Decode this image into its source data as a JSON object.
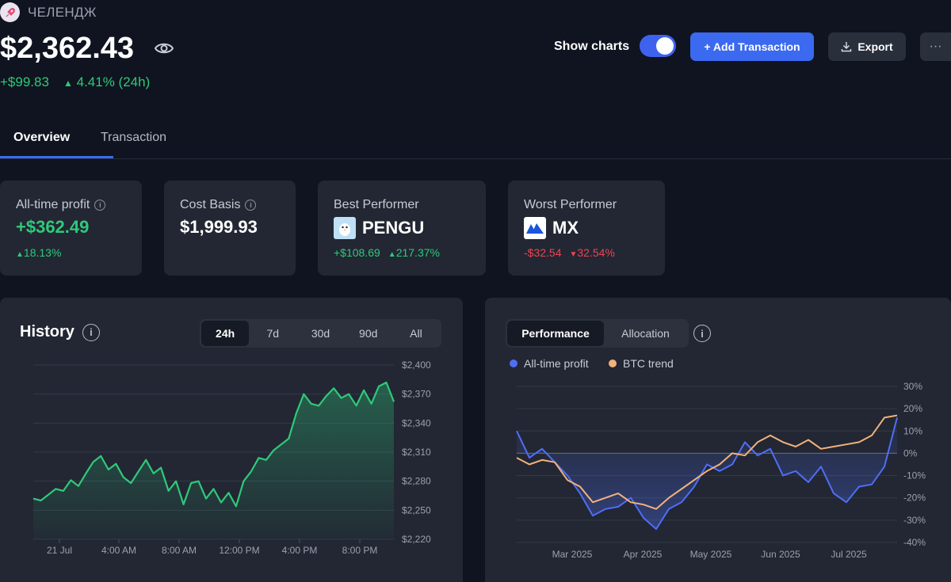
{
  "header": {
    "portfolio_name": "ЧЕЛЕНДЖ",
    "total_value": "$2,362.43",
    "change_abs": "+$99.83",
    "change_pct": "4.41% (24h)",
    "show_charts_label": "Show charts",
    "show_charts_on": true,
    "add_transaction_label": "+ Add Transaction",
    "export_label": "Export",
    "more_label": "···"
  },
  "tabs": [
    {
      "label": "Overview",
      "active": true
    },
    {
      "label": "Transaction",
      "active": false
    }
  ],
  "cards": {
    "all_time_profit": {
      "label": "All-time profit",
      "value": "+$362.49",
      "pct": "18.13%"
    },
    "cost_basis": {
      "label": "Cost Basis",
      "value": "$1,999.93"
    },
    "best_performer": {
      "label": "Best Performer",
      "symbol": "PENGU",
      "change_abs": "+$108.69",
      "change_pct": "217.37%"
    },
    "worst_performer": {
      "label": "Worst Performer",
      "symbol": "MX",
      "change_abs": "-$32.54",
      "change_pct": "32.54%"
    }
  },
  "history": {
    "title": "History",
    "ranges": [
      "24h",
      "7d",
      "30d",
      "90d",
      "All"
    ],
    "active_range": "24h"
  },
  "performance": {
    "tabs": [
      "Performance",
      "Allocation"
    ],
    "active_tab": "Performance",
    "legend": [
      {
        "name": "All-time profit",
        "color": "#4f6ef7"
      },
      {
        "name": "BTC trend",
        "color": "#f3b27a"
      }
    ]
  },
  "colors": {
    "accent": "#3b6af0",
    "positive": "#2fc97a",
    "negative": "#ef4452",
    "profit_line": "#4f6ef7",
    "btc_line": "#f3b27a"
  },
  "chart_data": [
    {
      "type": "area",
      "title": "History",
      "x_ticks": [
        "21 Jul",
        "4:00 AM",
        "8:00 AM",
        "12:00 PM",
        "4:00 PM",
        "8:00 PM"
      ],
      "y_ticks": [
        "$2,400",
        "$2,370",
        "$2,340",
        "$2,310",
        "$2,280",
        "$2,250",
        "$2,220"
      ],
      "ylim": [
        2220,
        2400
      ],
      "x_range": [
        0,
        24
      ],
      "grid": true,
      "color": "#2fc97a",
      "series": [
        {
          "x": [
            0,
            0.5,
            1,
            1.5,
            2,
            2.5,
            3,
            3.5,
            4,
            4.5,
            5,
            5.5,
            6,
            6.5,
            7,
            7.5,
            8,
            8.5,
            9,
            9.5,
            10,
            10.5,
            11,
            11.5,
            12,
            12.5,
            13,
            13.5,
            14,
            14.5,
            15,
            15.5,
            16,
            16.5,
            17,
            17.5,
            18,
            18.5,
            19,
            19.5,
            20,
            20.5,
            21,
            21.5,
            22,
            22.5,
            23,
            23.5,
            24
          ],
          "values": [
            2262,
            2260,
            2266,
            2272,
            2270,
            2281,
            2275,
            2288,
            2300,
            2306,
            2292,
            2298,
            2284,
            2278,
            2290,
            2302,
            2288,
            2294,
            2270,
            2280,
            2256,
            2278,
            2280,
            2262,
            2272,
            2258,
            2268,
            2254,
            2280,
            2290,
            2304,
            2302,
            2312,
            2318,
            2324,
            2350,
            2370,
            2360,
            2358,
            2368,
            2376,
            2366,
            2370,
            2358,
            2374,
            2360,
            2378,
            2382,
            2362
          ]
        }
      ]
    },
    {
      "type": "line",
      "title": "Performance",
      "x_ticks": [
        "Mar 2025",
        "Apr 2025",
        "May 2025",
        "Jun 2025",
        "Jul 2025"
      ],
      "y_ticks": [
        "30%",
        "20%",
        "10%",
        "0%",
        "-10%",
        "-20%",
        "-30%",
        "-40%"
      ],
      "ylim": [
        -40,
        30
      ],
      "x_range": [
        0,
        30
      ],
      "grid": true,
      "series": [
        {
          "name": "All-time profit",
          "color": "#4f6ef7",
          "x": [
            0,
            1,
            2,
            3,
            4,
            5,
            6,
            7,
            8,
            9,
            10,
            11,
            12,
            13,
            14,
            15,
            16,
            17,
            18,
            19,
            20,
            21,
            22,
            23,
            24,
            25,
            26,
            27,
            28,
            29,
            30
          ],
          "values": [
            10,
            -2,
            2,
            -4,
            -10,
            -18,
            -28,
            -25,
            -24,
            -20,
            -29,
            -34,
            -25,
            -22,
            -15,
            -5,
            -8,
            -5,
            5,
            -1,
            2,
            -10,
            -8,
            -13,
            -6,
            -18,
            -22,
            -15,
            -14,
            -6,
            16
          ]
        },
        {
          "name": "BTC trend",
          "color": "#f3b27a",
          "x": [
            0,
            1,
            2,
            3,
            4,
            5,
            6,
            7,
            8,
            9,
            10,
            11,
            12,
            13,
            14,
            15,
            16,
            17,
            18,
            19,
            20,
            21,
            22,
            23,
            24,
            25,
            26,
            27,
            28,
            29,
            30
          ],
          "values": [
            -2,
            -5,
            -3,
            -4,
            -12,
            -15,
            -22,
            -20,
            -18,
            -22,
            -23,
            -25,
            -20,
            -16,
            -12,
            -8,
            -5,
            0,
            -1,
            5,
            8,
            5,
            3,
            6,
            2,
            3,
            4,
            5,
            8,
            16,
            17
          ]
        }
      ]
    }
  ]
}
